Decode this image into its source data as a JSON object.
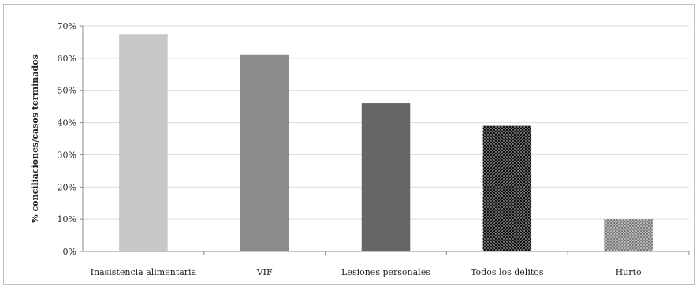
{
  "chart_data": {
    "type": "bar",
    "title": "",
    "xlabel": "",
    "ylabel": "% conciliaciones/casos terminados",
    "categories": [
      "Inasistencia alimentaria",
      "VIF",
      "Lesiones personales",
      "Todos los delitos",
      "Hurto"
    ],
    "values": [
      0.675,
      0.61,
      0.46,
      0.39,
      0.1
    ],
    "value_format": "percent",
    "ylim": [
      0,
      0.7
    ],
    "yticks": [
      0,
      0.1,
      0.2,
      0.3,
      0.4,
      0.5,
      0.6,
      0.7
    ],
    "ytick_labels": [
      "0%",
      "10%",
      "20%",
      "30%",
      "40%",
      "50%",
      "60%",
      "70%"
    ],
    "grid": true,
    "legend": "none",
    "bar_styles": [
      {
        "fill": "#c8c8c8",
        "pattern": "solid"
      },
      {
        "fill": "#8c8c8c",
        "pattern": "solid"
      },
      {
        "fill": "#666666",
        "pattern": "solid"
      },
      {
        "fill": "#111111",
        "pattern": "dots"
      },
      {
        "fill": "#9a9a9a",
        "pattern": "checker"
      }
    ],
    "colors": {
      "grid": "#d9d9d9",
      "axis": "#8a8a8a",
      "border": "#bdbdbd"
    }
  }
}
